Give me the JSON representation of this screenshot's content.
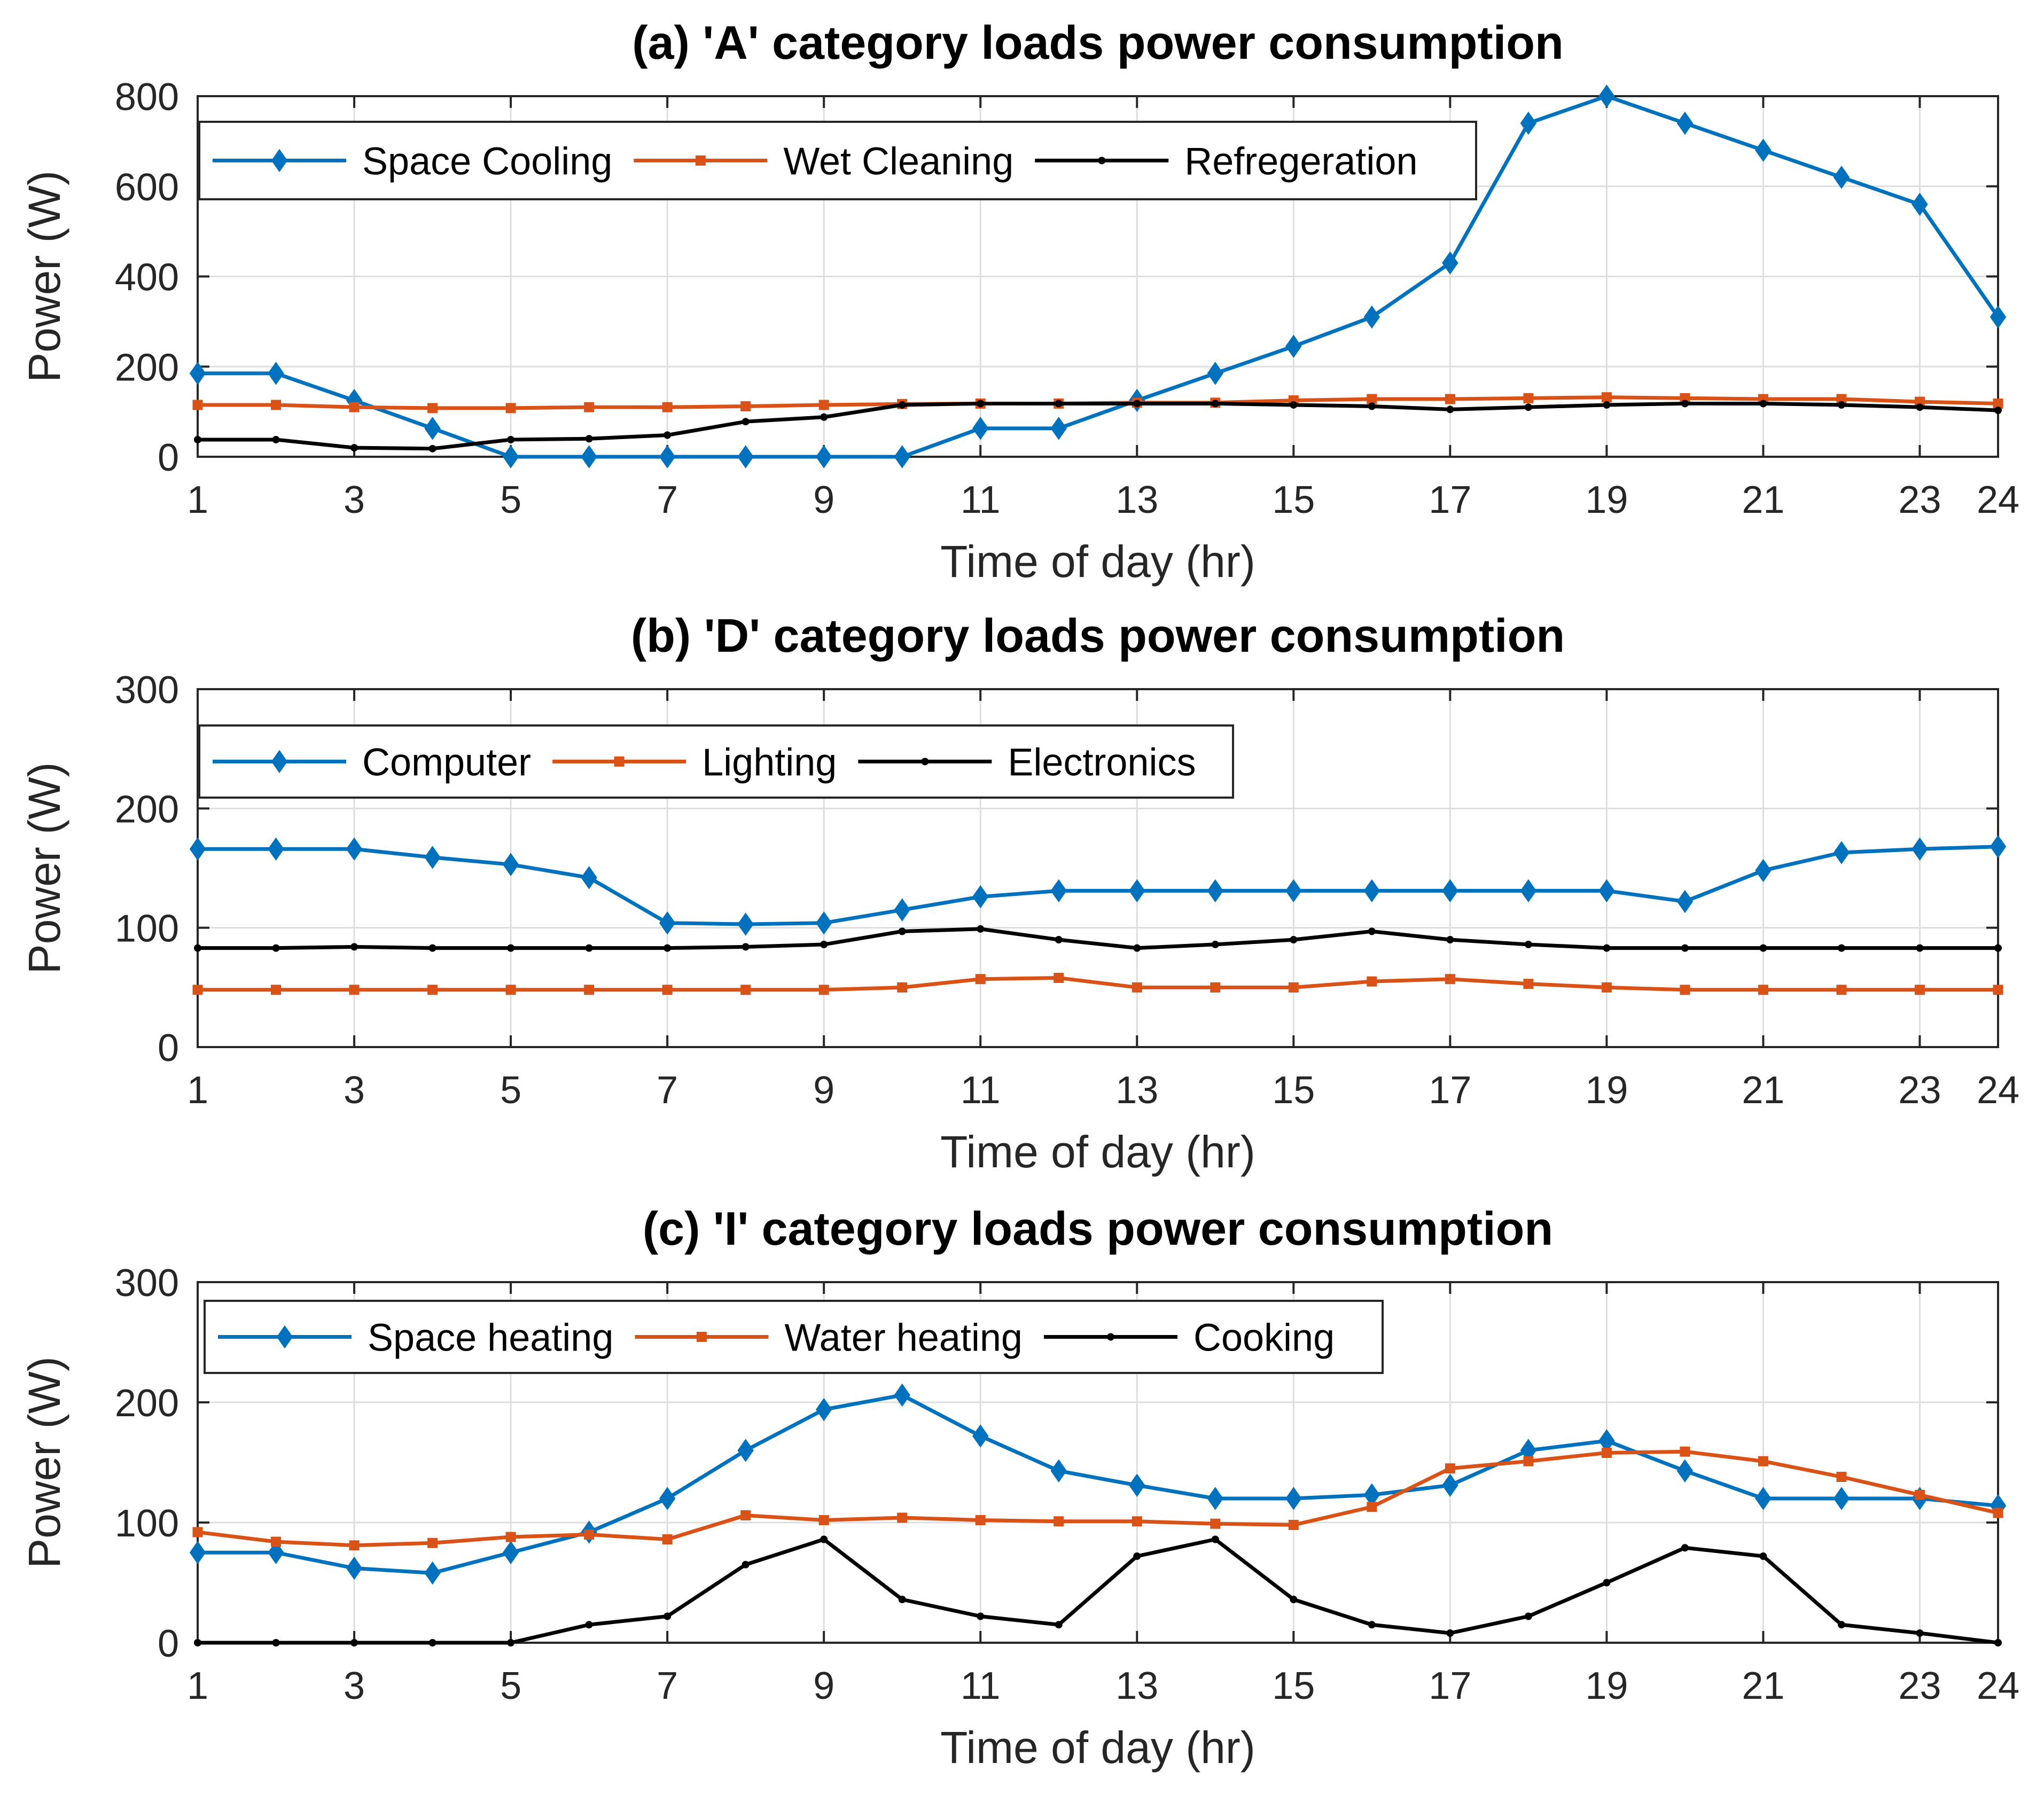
{
  "chart_data": [
    {
      "type": "line",
      "title": "(a) 'A' category loads power consumption",
      "xlabel": "Time of day (hr)",
      "ylabel": "Power (W)",
      "x": [
        1,
        2,
        3,
        4,
        5,
        6,
        7,
        8,
        9,
        10,
        11,
        12,
        13,
        14,
        15,
        16,
        17,
        18,
        19,
        20,
        21,
        22,
        23,
        24
      ],
      "xticks": [
        "1",
        "3",
        "5",
        "7",
        "9",
        "11",
        "13",
        "15",
        "17",
        "19",
        "21",
        "23",
        "24"
      ],
      "yticks": [
        "0",
        "200",
        "400",
        "600",
        "800"
      ],
      "xlim": [
        1,
        24
      ],
      "ylim": [
        0,
        800
      ],
      "grid": true,
      "legend_location": "top-left",
      "series": [
        {
          "name": "Space Cooling",
          "color": "#0072BD",
          "marker": "diamond",
          "values": [
            185,
            185,
            125,
            63,
            0,
            0,
            0,
            0,
            0,
            0,
            63,
            63,
            125,
            185,
            245,
            310,
            430,
            740,
            800,
            740,
            680,
            620,
            560,
            310
          ]
        },
        {
          "name": "Wet Cleaning",
          "color": "#D95319",
          "marker": "square",
          "values": [
            115,
            115,
            110,
            108,
            108,
            110,
            110,
            112,
            115,
            117,
            118,
            118,
            120,
            120,
            125,
            128,
            128,
            130,
            132,
            130,
            128,
            128,
            122,
            118
          ]
        },
        {
          "name": "Refregeration",
          "color": "#000000",
          "marker": "dot",
          "values": [
            38,
            38,
            20,
            18,
            38,
            40,
            48,
            78,
            88,
            115,
            118,
            118,
            118,
            118,
            115,
            112,
            105,
            110,
            115,
            118,
            118,
            115,
            110,
            103
          ]
        }
      ]
    },
    {
      "type": "line",
      "title": "(b) 'D' category loads power consumption",
      "xlabel": "Time of day (hr)",
      "ylabel": "Power (W)",
      "x": [
        1,
        2,
        3,
        4,
        5,
        6,
        7,
        8,
        9,
        10,
        11,
        12,
        13,
        14,
        15,
        16,
        17,
        18,
        19,
        20,
        21,
        22,
        23,
        24
      ],
      "xticks": [
        "1",
        "3",
        "5",
        "7",
        "9",
        "11",
        "13",
        "15",
        "17",
        "19",
        "21",
        "23",
        "24"
      ],
      "yticks": [
        "0",
        "100",
        "200",
        "300"
      ],
      "xlim": [
        1,
        24
      ],
      "ylim": [
        0,
        300
      ],
      "grid": true,
      "legend_location": "top-left",
      "series": [
        {
          "name": "Computer",
          "color": "#0072BD",
          "marker": "diamond",
          "values": [
            166,
            166,
            166,
            159,
            153,
            142,
            104,
            103,
            104,
            115,
            126,
            131,
            131,
            131,
            131,
            131,
            131,
            131,
            131,
            122,
            148,
            163,
            166,
            168
          ]
        },
        {
          "name": "Lighting",
          "color": "#D95319",
          "marker": "square",
          "values": [
            48,
            48,
            48,
            48,
            48,
            48,
            48,
            48,
            48,
            50,
            57,
            58,
            50,
            50,
            50,
            55,
            57,
            53,
            50,
            48,
            48,
            48,
            48,
            48
          ]
        },
        {
          "name": "Electronics",
          "color": "#000000",
          "marker": "dot",
          "values": [
            83,
            83,
            84,
            83,
            83,
            83,
            83,
            84,
            86,
            97,
            99,
            90,
            83,
            86,
            90,
            97,
            90,
            86,
            83,
            83,
            83,
            83,
            83,
            83
          ]
        }
      ]
    },
    {
      "type": "line",
      "title": "(c) 'I' category loads power consumption",
      "xlabel": "Time of day (hr)",
      "ylabel": "Power (W)",
      "x": [
        1,
        2,
        3,
        4,
        5,
        6,
        7,
        8,
        9,
        10,
        11,
        12,
        13,
        14,
        15,
        16,
        17,
        18,
        19,
        20,
        21,
        22,
        23,
        24
      ],
      "xticks": [
        "1",
        "3",
        "5",
        "7",
        "9",
        "11",
        "13",
        "15",
        "17",
        "19",
        "21",
        "23",
        "24"
      ],
      "yticks": [
        "0",
        "100",
        "200",
        "300"
      ],
      "xlim": [
        1,
        24
      ],
      "ylim": [
        0,
        300
      ],
      "grid": true,
      "legend_location": "top-left",
      "series": [
        {
          "name": "Space heating",
          "color": "#0072BD",
          "marker": "diamond",
          "values": [
            75,
            75,
            62,
            58,
            75,
            92,
            120,
            160,
            194,
            206,
            172,
            143,
            131,
            120,
            120,
            123,
            131,
            160,
            168,
            143,
            120,
            120,
            120,
            114
          ]
        },
        {
          "name": "Water heating",
          "color": "#D95319",
          "marker": "square",
          "values": [
            92,
            84,
            81,
            83,
            88,
            90,
            86,
            106,
            102,
            104,
            102,
            101,
            101,
            99,
            98,
            113,
            145,
            151,
            158,
            159,
            151,
            138,
            123,
            108
          ]
        },
        {
          "name": "Cooking",
          "color": "#000000",
          "marker": "dot",
          "values": [
            0,
            0,
            0,
            0,
            0,
            15,
            22,
            65,
            86,
            36,
            22,
            15,
            72,
            86,
            36,
            15,
            8,
            22,
            50,
            79,
            72,
            15,
            8,
            0
          ]
        }
      ]
    }
  ]
}
